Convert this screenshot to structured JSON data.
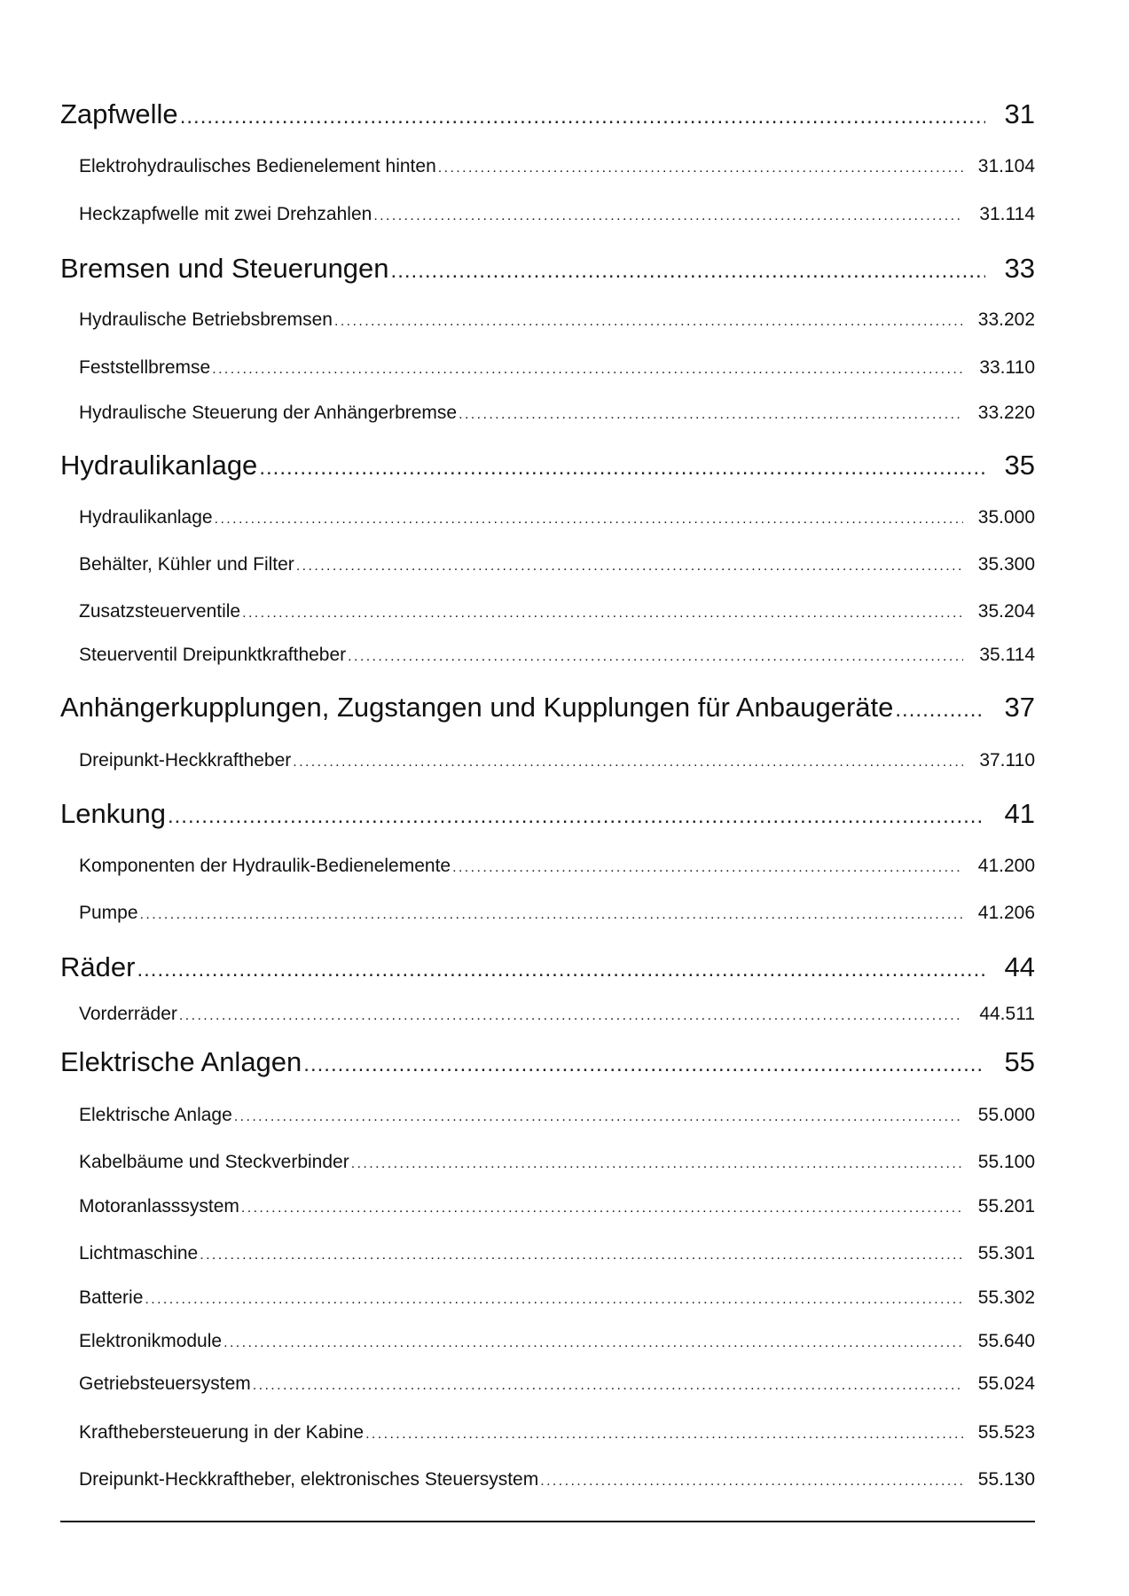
{
  "toc": [
    {
      "level": "section",
      "title": "Zapfwelle",
      "page": "31"
    },
    {
      "level": "entry",
      "title": "Elektrohydraulisches Bedienelement hinten",
      "page": "31.104"
    },
    {
      "level": "entry",
      "title": "Heckzapfwelle mit zwei Drehzahlen",
      "page": "31.114"
    },
    {
      "level": "section",
      "title": "Bremsen und Steuerungen",
      "page": "33"
    },
    {
      "level": "entry",
      "title": "Hydraulische Betriebsbremsen",
      "page": "33.202"
    },
    {
      "level": "entry",
      "title": "Feststellbremse",
      "page": "33.110"
    },
    {
      "level": "entry",
      "title": "Hydraulische Steuerung der Anhängerbremse",
      "page": "33.220"
    },
    {
      "level": "section",
      "title": "Hydraulikanlage",
      "page": "35"
    },
    {
      "level": "entry",
      "title": "Hydraulikanlage",
      "page": "35.000"
    },
    {
      "level": "entry",
      "title": "Behälter, Kühler und Filter",
      "page": "35.300"
    },
    {
      "level": "entry",
      "title": "Zusatzsteuerventile",
      "page": "35.204"
    },
    {
      "level": "entry",
      "title": "Steuerventil Dreipunktkraftheber",
      "page": "35.114"
    },
    {
      "level": "section",
      "title": "Anhängerkupplungen, Zugstangen und Kupplungen für Anbaugeräte",
      "page": "37"
    },
    {
      "level": "entry",
      "title": "Dreipunkt-Heckkraftheber",
      "page": "37.110"
    },
    {
      "level": "section",
      "title": "Lenkung",
      "page": "41"
    },
    {
      "level": "entry",
      "title": "Komponenten der Hydraulik-Bedienelemente",
      "page": "41.200"
    },
    {
      "level": "entry",
      "title": "Pumpe",
      "page": "41.206"
    },
    {
      "level": "section",
      "title": "Räder",
      "page": "44"
    },
    {
      "level": "entry",
      "title": "Vorderräder",
      "page": "44.511"
    },
    {
      "level": "section",
      "title": "Elektrische Anlagen",
      "page": "55"
    },
    {
      "level": "entry",
      "title": "Elektrische Anlage",
      "page": "55.000"
    },
    {
      "level": "entry",
      "title": "Kabelbäume und Steckverbinder",
      "page": "55.100"
    },
    {
      "level": "entry",
      "title": "Motoranlasssystem",
      "page": "55.201"
    },
    {
      "level": "entry",
      "title": "Lichtmaschine",
      "page": "55.301"
    },
    {
      "level": "entry",
      "title": "Batterie",
      "page": "55.302"
    },
    {
      "level": "entry",
      "title": "Elektronikmodule",
      "page": "55.640"
    },
    {
      "level": "entry",
      "title": "Getriebsteuersystem",
      "page": "55.024"
    },
    {
      "level": "entry",
      "title": "Kraftheber­steuerung in der Kabine",
      "page": "55.523"
    },
    {
      "level": "entry",
      "title": "Dreipunkt-Heckkraftheber, elektronisches Steuersystem",
      "page": "55.130"
    }
  ]
}
